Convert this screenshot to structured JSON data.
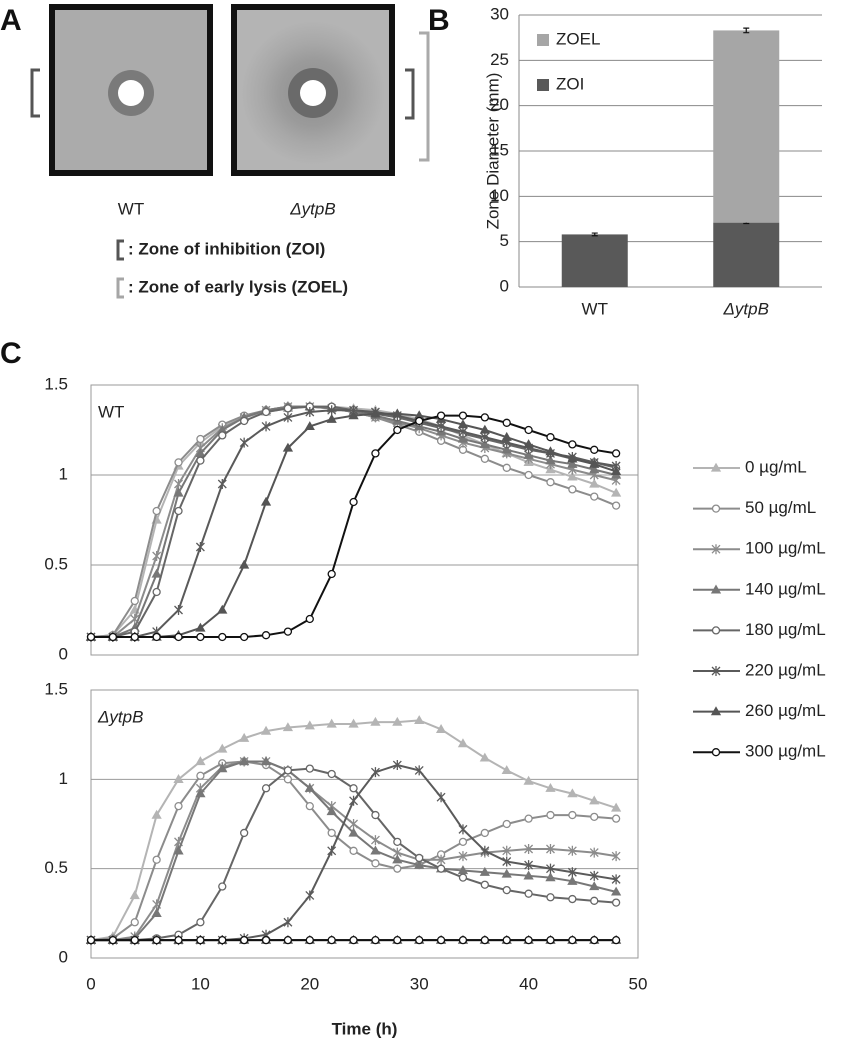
{
  "panel_labels": [
    "A",
    "B",
    "C"
  ],
  "panel_a": {
    "labels": [
      "WT",
      "ΔytpB"
    ],
    "legend": [
      {
        "text": ": Zone of inhibition (ZOI)",
        "color": "#555555"
      },
      {
        "text": ": Zone of early lysis (ZOEL)",
        "color": "#a6a6a6"
      }
    ]
  },
  "chart_data": [
    {
      "type": "bar",
      "stacked": true,
      "y_label": "Zone Diameter (mm)",
      "categories": [
        "WT",
        "ΔytpB"
      ],
      "series": [
        {
          "name": "ZOI",
          "color": "#595959",
          "values": [
            5.8,
            7.1
          ],
          "errors": [
            0.15,
            0.1
          ]
        },
        {
          "name": "ZOEL",
          "color": "#a6a6a6",
          "values": [
            null,
            21.2
          ],
          "errors": [
            null,
            0.25
          ]
        }
      ],
      "ylim": [
        0,
        30
      ],
      "yticks": [
        0,
        5,
        10,
        15,
        20,
        25,
        30
      ],
      "grid": true
    },
    {
      "type": "line",
      "x_label": "Time (h)",
      "x": [
        0,
        2,
        4,
        6,
        8,
        10,
        12,
        14,
        16,
        18,
        20,
        22,
        24,
        26,
        28,
        30,
        32,
        34,
        36,
        38,
        40,
        42,
        44,
        46,
        48
      ],
      "xlim": [
        0,
        50
      ],
      "xticks": [
        0,
        10,
        20,
        30,
        40,
        50
      ],
      "ylim": [
        0,
        1.5
      ],
      "yticks": [
        0,
        0.5,
        1,
        1.5
      ],
      "grid": true,
      "series": [
        {
          "name": "0 µg/mL",
          "color": "#b4b4b4",
          "marker": "triangle"
        },
        {
          "name": "50 µg/mL",
          "color": "#8c8c8c",
          "marker": "circle"
        },
        {
          "name": "100 µg/mL",
          "color": "#8c8c8c",
          "marker": "star"
        },
        {
          "name": "140 µg/mL",
          "color": "#777777",
          "marker": "triangle"
        },
        {
          "name": "180 µg/mL",
          "color": "#666666",
          "marker": "circle"
        },
        {
          "name": "220 µg/mL",
          "color": "#5a5a5a",
          "marker": "star"
        },
        {
          "name": "260 µg/mL",
          "color": "#555555",
          "marker": "triangle"
        },
        {
          "name": "300 µg/mL",
          "color": "#111111",
          "marker": "circle"
        }
      ],
      "panels": [
        {
          "label": "WT",
          "values": [
            [
              0.1,
              0.11,
              0.25,
              0.75,
              1.05,
              1.18,
              1.27,
              1.32,
              1.35,
              1.37,
              1.38,
              1.38,
              1.37,
              1.36,
              1.34,
              1.31,
              1.27,
              1.22,
              1.17,
              1.12,
              1.07,
              1.03,
              0.99,
              0.95,
              0.9
            ],
            [
              0.1,
              0.11,
              0.3,
              0.8,
              1.07,
              1.2,
              1.28,
              1.33,
              1.36,
              1.38,
              1.38,
              1.37,
              1.35,
              1.32,
              1.28,
              1.24,
              1.19,
              1.14,
              1.09,
              1.04,
              1.0,
              0.96,
              0.92,
              0.88,
              0.83
            ],
            [
              0.1,
              0.1,
              0.2,
              0.55,
              0.95,
              1.15,
              1.26,
              1.32,
              1.36,
              1.38,
              1.38,
              1.37,
              1.35,
              1.32,
              1.29,
              1.26,
              1.22,
              1.18,
              1.15,
              1.12,
              1.09,
              1.06,
              1.03,
              1.0,
              0.97
            ],
            [
              0.1,
              0.1,
              0.15,
              0.45,
              0.9,
              1.12,
              1.25,
              1.32,
              1.36,
              1.38,
              1.38,
              1.37,
              1.35,
              1.33,
              1.3,
              1.27,
              1.24,
              1.2,
              1.17,
              1.14,
              1.11,
              1.08,
              1.06,
              1.03,
              1.0
            ],
            [
              0.1,
              0.1,
              0.13,
              0.35,
              0.8,
              1.08,
              1.22,
              1.3,
              1.35,
              1.37,
              1.38,
              1.38,
              1.36,
              1.34,
              1.32,
              1.29,
              1.26,
              1.23,
              1.2,
              1.17,
              1.14,
              1.12,
              1.09,
              1.07,
              1.04
            ],
            [
              0.1,
              0.1,
              0.1,
              0.13,
              0.25,
              0.6,
              0.95,
              1.18,
              1.27,
              1.32,
              1.35,
              1.36,
              1.36,
              1.35,
              1.33,
              1.3,
              1.27,
              1.24,
              1.21,
              1.18,
              1.15,
              1.12,
              1.1,
              1.07,
              1.05
            ],
            [
              0.1,
              0.1,
              0.1,
              0.1,
              0.11,
              0.15,
              0.25,
              0.5,
              0.85,
              1.15,
              1.27,
              1.31,
              1.33,
              1.34,
              1.34,
              1.33,
              1.31,
              1.28,
              1.25,
              1.21,
              1.17,
              1.13,
              1.09,
              1.06,
              1.02
            ],
            [
              0.1,
              0.1,
              0.1,
              0.1,
              0.1,
              0.1,
              0.1,
              0.1,
              0.11,
              0.13,
              0.2,
              0.45,
              0.85,
              1.12,
              1.25,
              1.3,
              1.33,
              1.33,
              1.32,
              1.29,
              1.25,
              1.21,
              1.17,
              1.14,
              1.12
            ]
          ]
        },
        {
          "label": "ΔytpB",
          "values": [
            [
              0.1,
              0.12,
              0.35,
              0.8,
              1.0,
              1.1,
              1.17,
              1.23,
              1.27,
              1.29,
              1.3,
              1.31,
              1.31,
              1.32,
              1.32,
              1.33,
              1.28,
              1.2,
              1.12,
              1.05,
              0.99,
              0.95,
              0.92,
              0.88,
              0.84
            ],
            [
              0.1,
              0.11,
              0.2,
              0.55,
              0.85,
              1.02,
              1.09,
              1.1,
              1.08,
              1.0,
              0.85,
              0.7,
              0.6,
              0.53,
              0.5,
              0.52,
              0.58,
              0.65,
              0.7,
              0.75,
              0.78,
              0.8,
              0.8,
              0.79,
              0.78
            ],
            [
              0.1,
              0.1,
              0.12,
              0.3,
              0.65,
              0.95,
              1.07,
              1.1,
              1.1,
              1.05,
              0.95,
              0.85,
              0.75,
              0.66,
              0.59,
              0.55,
              0.55,
              0.57,
              0.59,
              0.6,
              0.61,
              0.61,
              0.6,
              0.59,
              0.57
            ],
            [
              0.1,
              0.1,
              0.11,
              0.25,
              0.6,
              0.92,
              1.06,
              1.1,
              1.1,
              1.05,
              0.95,
              0.82,
              0.7,
              0.6,
              0.55,
              0.52,
              0.5,
              0.49,
              0.48,
              0.47,
              0.46,
              0.45,
              0.43,
              0.4,
              0.37
            ],
            [
              0.1,
              0.1,
              0.1,
              0.11,
              0.13,
              0.2,
              0.4,
              0.7,
              0.95,
              1.05,
              1.06,
              1.03,
              0.95,
              0.8,
              0.65,
              0.56,
              0.5,
              0.45,
              0.41,
              0.38,
              0.36,
              0.34,
              0.33,
              0.32,
              0.31
            ],
            [
              0.1,
              0.1,
              0.1,
              0.1,
              0.1,
              0.1,
              0.1,
              0.11,
              0.13,
              0.2,
              0.35,
              0.6,
              0.88,
              1.04,
              1.08,
              1.05,
              0.9,
              0.72,
              0.6,
              0.54,
              0.52,
              0.5,
              0.48,
              0.46,
              0.44
            ],
            [
              0.1,
              0.1,
              0.1,
              0.1,
              0.1,
              0.1,
              0.1,
              0.1,
              0.1,
              0.1,
              0.1,
              0.1,
              0.1,
              0.1,
              0.1,
              0.1,
              0.1,
              0.1,
              0.1,
              0.1,
              0.1,
              0.1,
              0.1,
              0.1,
              0.1
            ],
            [
              0.1,
              0.1,
              0.1,
              0.1,
              0.1,
              0.1,
              0.1,
              0.1,
              0.1,
              0.1,
              0.1,
              0.1,
              0.1,
              0.1,
              0.1,
              0.1,
              0.1,
              0.1,
              0.1,
              0.1,
              0.1,
              0.1,
              0.1,
              0.1,
              0.1
            ]
          ]
        }
      ]
    }
  ]
}
